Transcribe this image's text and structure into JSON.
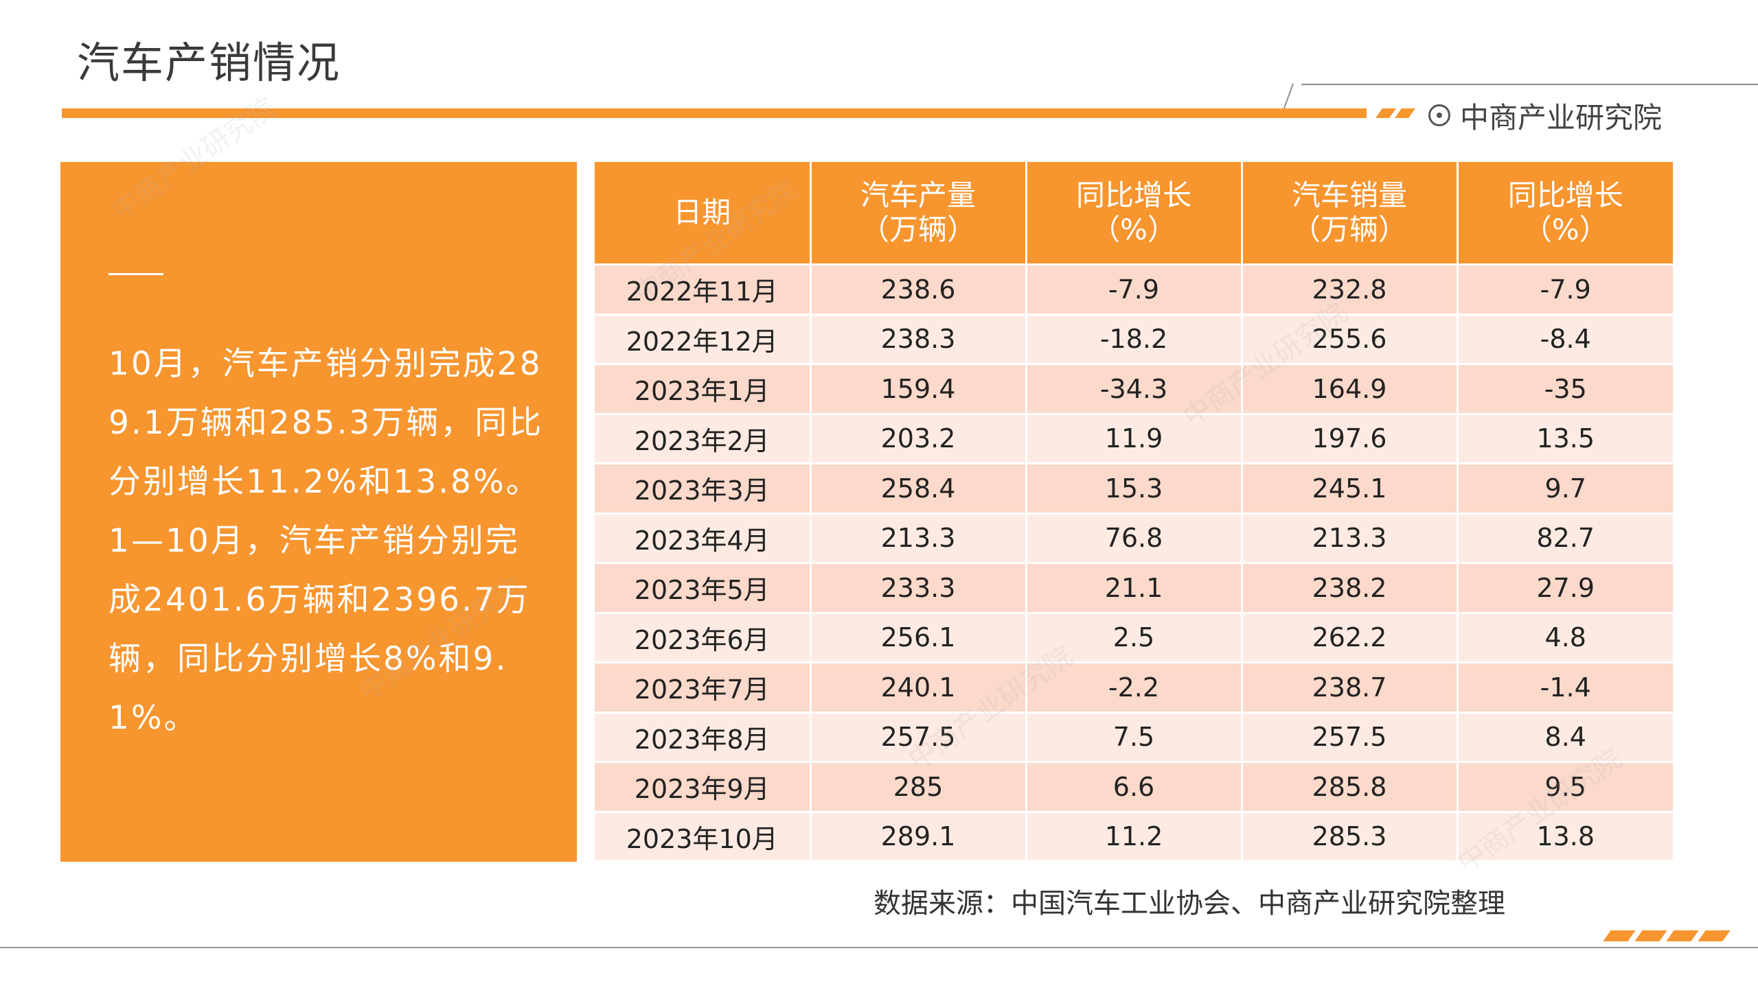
{
  "title": "汽车产销情况",
  "brand": {
    "name": "中商产业研究院"
  },
  "summary": "10月，汽车产销分别完成289.1万辆和285.3万辆，同比分别增长11.2%和13.8%。1—10月，汽车产销分别完成2401.6万辆和2396.7万辆，同比分别增长8%和9.1%。",
  "table": {
    "headers": [
      {
        "line1": "日期",
        "line2": ""
      },
      {
        "line1": "汽车产量",
        "line2": "（万辆）"
      },
      {
        "line1": "同比增长",
        "line2": "（%）"
      },
      {
        "line1": "汽车销量",
        "line2": "（万辆）"
      },
      {
        "line1": "同比增长",
        "line2": "（%）"
      }
    ],
    "rows": [
      [
        "2022年11月",
        "238.6",
        "-7.9",
        "232.8",
        "-7.9"
      ],
      [
        "2022年12月",
        "238.3",
        "-18.2",
        "255.6",
        "-8.4"
      ],
      [
        "2023年1月",
        "159.4",
        "-34.3",
        "164.9",
        "-35"
      ],
      [
        "2023年2月",
        "203.2",
        "11.9",
        "197.6",
        "13.5"
      ],
      [
        "2023年3月",
        "258.4",
        "15.3",
        "245.1",
        "9.7"
      ],
      [
        "2023年4月",
        "213.3",
        "76.8",
        "213.3",
        "82.7"
      ],
      [
        "2023年5月",
        "233.3",
        "21.1",
        "238.2",
        "27.9"
      ],
      [
        "2023年6月",
        "256.1",
        "2.5",
        "262.2",
        "4.8"
      ],
      [
        "2023年7月",
        "240.1",
        "-2.2",
        "238.7",
        "-1.4"
      ],
      [
        "2023年8月",
        "257.5",
        "7.5",
        "257.5",
        "8.4"
      ],
      [
        "2023年9月",
        "285",
        "6.6",
        "285.8",
        "9.5"
      ],
      [
        "2023年10月",
        "289.1",
        "11.2",
        "285.3",
        "13.8"
      ]
    ]
  },
  "source": "数据来源：中国汽车工业协会、中商产业研究院整理",
  "colors": {
    "accent": "#f7952f",
    "row_odd": "#fbd9cb",
    "row_even": "#fdebe3"
  },
  "watermark": {
    "text": "中商产业研究院",
    "url": "www.askci.com/reports"
  }
}
